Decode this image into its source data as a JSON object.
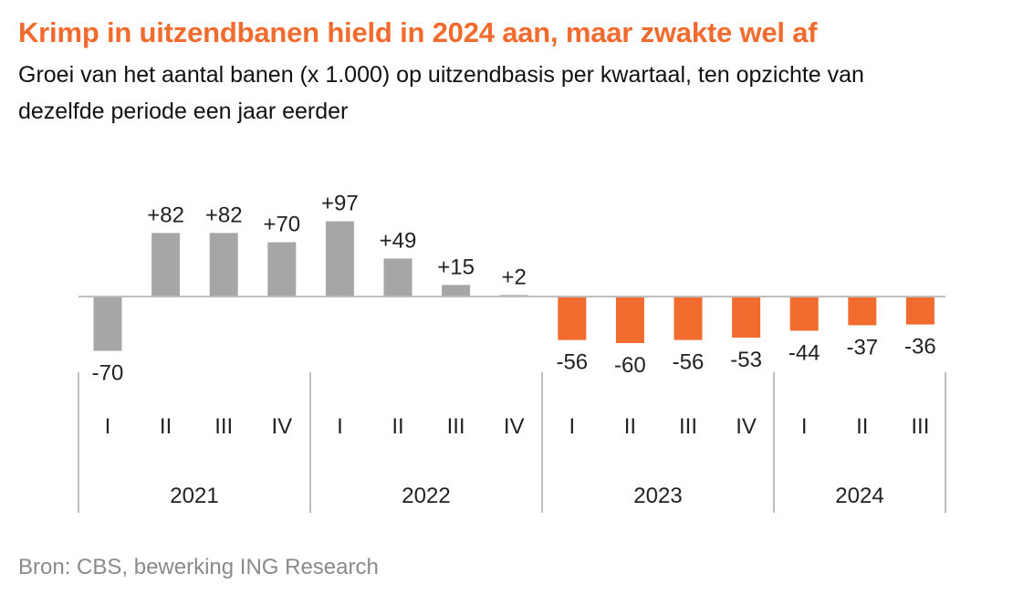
{
  "header": {
    "title": "Krimp in uitzendbanen hield in 2024 aan, maar zwakte wel af",
    "subtitle": "Groei van het aantal banen (x 1.000) op uitzendbasis per kwartaal,  ten opzichte van dezelfde periode een jaar eerder"
  },
  "footer": {
    "source": "Bron: CBS, bewerking ING Research"
  },
  "colors": {
    "historic": "#a6a6a6",
    "recent": "#f06b2d",
    "title": "#f06b2d",
    "axis": "#bfbfbf"
  },
  "chart_data": {
    "type": "bar",
    "groups": [
      {
        "year": "2021",
        "quarters": [
          "I",
          "II",
          "III",
          "IV"
        ]
      },
      {
        "year": "2022",
        "quarters": [
          "I",
          "II",
          "III",
          "IV"
        ]
      },
      {
        "year": "2023",
        "quarters": [
          "I",
          "II",
          "III",
          "IV"
        ]
      },
      {
        "year": "2024",
        "quarters": [
          "I",
          "II",
          "III"
        ]
      }
    ],
    "values": [
      -70,
      82,
      82,
      70,
      97,
      49,
      15,
      2,
      -56,
      -60,
      -56,
      -53,
      -44,
      -37,
      -36
    ],
    "data_labels": [
      "-70",
      "+82",
      "+82",
      "+70",
      "+97",
      "+49",
      "+15",
      "+2",
      "-56",
      "-60",
      "-56",
      "-53",
      "-44",
      "-37",
      "-36"
    ],
    "bar_colors": [
      "historic",
      "historic",
      "historic",
      "historic",
      "historic",
      "historic",
      "historic",
      "historic",
      "recent",
      "recent",
      "recent",
      "recent",
      "recent",
      "recent",
      "recent"
    ],
    "grid": false,
    "legend": "none"
  }
}
